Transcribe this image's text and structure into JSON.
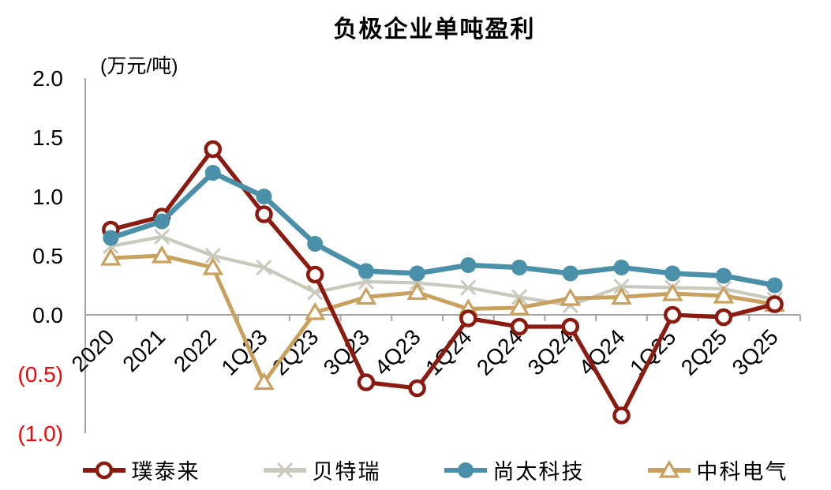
{
  "chart_data": {
    "type": "line",
    "title": "负极企业单吨盈利",
    "unit_label": "(万元/吨)",
    "xlabel": "",
    "ylabel": "(万元/吨)",
    "ylim": [
      -1.0,
      2.0
    ],
    "y_interval": 0.5,
    "grid": false,
    "legend_position": "bottom",
    "axis_color": "#A6A6A6",
    "negative_tick_color": "#FF0000",
    "categories": [
      "2020",
      "2021",
      "2022",
      "1Q23",
      "2Q23",
      "3Q23",
      "4Q23",
      "1Q24",
      "2Q24",
      "3Q24",
      "4Q24",
      "1Q25",
      "2Q25",
      "3Q25"
    ],
    "y_ticks": [
      {
        "label": "2.0",
        "value": 2.0,
        "color": "#000000"
      },
      {
        "label": "1.5",
        "value": 1.5,
        "color": "#000000"
      },
      {
        "label": "1.0",
        "value": 1.0,
        "color": "#000000"
      },
      {
        "label": "0.5",
        "value": 0.5,
        "color": "#000000"
      },
      {
        "label": "0.0",
        "value": 0.0,
        "color": "#000000"
      },
      {
        "label": "(0.5)",
        "value": -0.5,
        "color": "#FF0000"
      },
      {
        "label": "(1.0)",
        "value": -1.0,
        "color": "#FF0000"
      }
    ],
    "series": [
      {
        "key": "putailai",
        "name": "璞泰来",
        "color": "#8B1A10",
        "marker": "open-circle-icon",
        "values": [
          0.72,
          0.83,
          1.4,
          0.85,
          0.34,
          -0.57,
          -0.62,
          -0.03,
          -0.1,
          -0.1,
          -0.85,
          0.0,
          -0.02,
          0.09
        ]
      },
      {
        "key": "beiterui",
        "name": "贝特瑞",
        "color": "#C9C9BE",
        "marker": "x-icon",
        "values": [
          0.58,
          0.66,
          0.5,
          0.4,
          0.19,
          0.28,
          0.27,
          0.23,
          0.15,
          0.08,
          0.24,
          0.23,
          0.22,
          0.13
        ]
      },
      {
        "key": "shangtai-keji",
        "name": "尚太科技",
        "color": "#4A90A8",
        "marker": "filled-circle-icon",
        "values": [
          0.65,
          0.79,
          1.2,
          1.0,
          0.6,
          0.37,
          0.35,
          0.42,
          0.4,
          0.35,
          0.4,
          0.35,
          0.33,
          0.25
        ]
      },
      {
        "key": "zhongke-dianqi",
        "name": "中科电气",
        "color": "#C9A15E",
        "marker": "open-triangle-icon",
        "values": [
          0.48,
          0.5,
          0.4,
          -0.57,
          0.02,
          0.15,
          0.19,
          0.05,
          0.06,
          0.14,
          0.15,
          0.18,
          0.16,
          0.09
        ]
      }
    ]
  }
}
